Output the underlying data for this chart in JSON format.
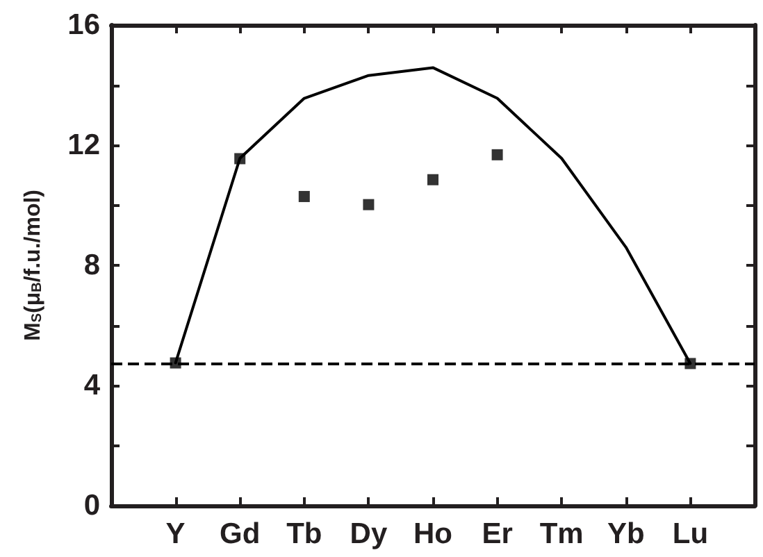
{
  "chart_data": {
    "type": "line",
    "ylabel": "M$_{S}$(μ$_{B}$/f.u./mol)",
    "categories": [
      "Y",
      "Gd",
      "Tb",
      "Dy",
      "Ho",
      "Er",
      "Tm",
      "Yb",
      "Lu"
    ],
    "ylim": [
      0,
      16
    ],
    "yticks": [
      0,
      {
        "value": 2,
        "label": null
      },
      4,
      {
        "value": 6,
        "label": null
      },
      8,
      {
        "value": 10,
        "label": null
      },
      12,
      {
        "value": 14,
        "label": null
      },
      16
    ],
    "grid": false,
    "series": [
      {
        "color": "#000000",
        "marker": "none",
        "line_style": "solid",
        "values": [
          4.75,
          11.56,
          13.56,
          14.32,
          14.58,
          13.56,
          11.56,
          8.6,
          4.73
        ]
      },
      {
        "type": "scatter",
        "color": "#000000",
        "marker": "square",
        "values": [
          4.75,
          11.55,
          10.29,
          10.02,
          10.85,
          11.68,
          null,
          null,
          4.73
        ]
      }
    ],
    "ref_lines": [
      {
        "axis": "y",
        "value": 4.75,
        "color": "#000000",
        "line_style": "dashed"
      }
    ]
  }
}
